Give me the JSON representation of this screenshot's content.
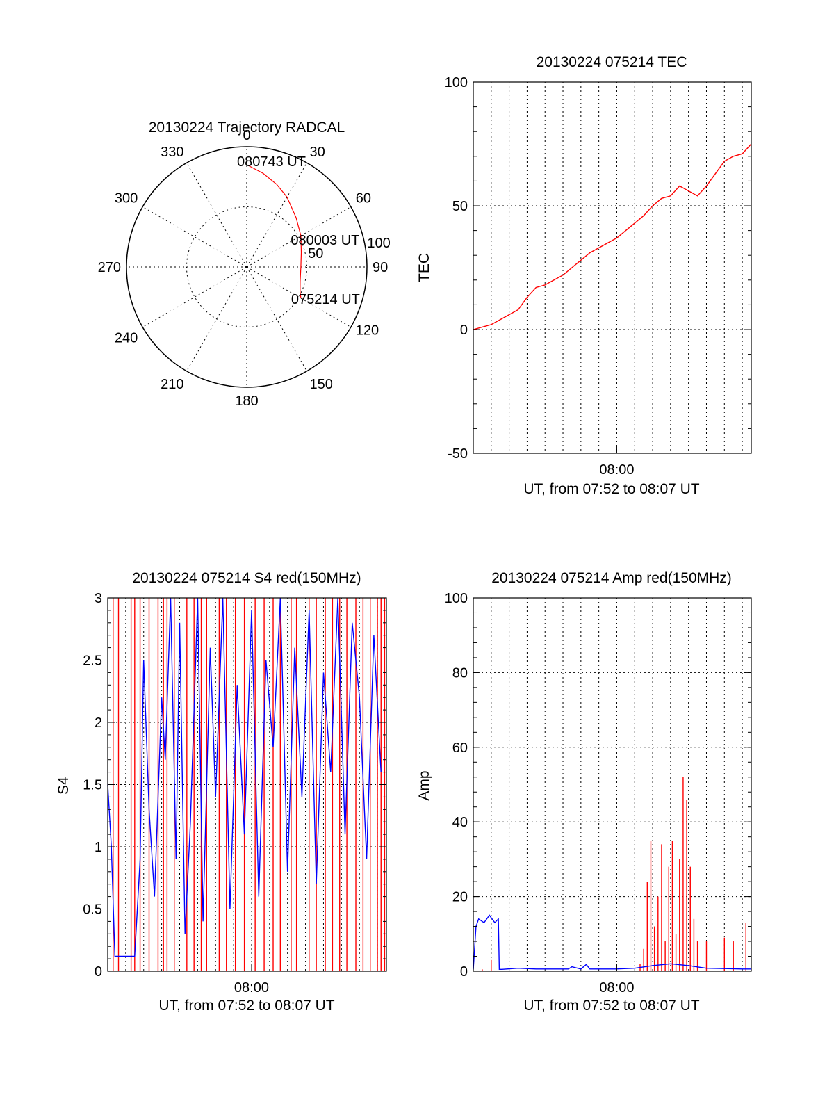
{
  "chart_data": [
    {
      "type": "polar",
      "title": "20130224 Trajectory RADCAL",
      "angle_labels": [
        "0",
        "30",
        "60",
        "90",
        "120",
        "150",
        "180",
        "210",
        "240",
        "270",
        "300",
        "330"
      ],
      "radius_labels": [
        "50",
        "100"
      ],
      "rlim": [
        0,
        100
      ],
      "grid": true,
      "trajectory": {
        "color": "#ff0000",
        "azimuth_deg": [
          0,
          10,
          20,
          30,
          45,
          60,
          75,
          90,
          105,
          115,
          120
        ],
        "radius": [
          85,
          79,
          73,
          67,
          58,
          52,
          47,
          45,
          46,
          49,
          52
        ]
      },
      "annotations": [
        {
          "text": "080743 UT",
          "azimuth_deg": 0,
          "radius": 85
        },
        {
          "text": "080003 UT",
          "azimuth_deg": 84,
          "radius": 45
        },
        {
          "text": "075214 UT",
          "azimuth_deg": 120,
          "radius": 52
        }
      ]
    },
    {
      "type": "line",
      "title": "20130224 075214 TEC",
      "xlabel": "UT, from 07:52 to 08:07 UT",
      "ylabel": "TEC",
      "xlim": [
        0,
        15.5
      ],
      "ylim": [
        -50,
        100
      ],
      "yticks": [
        -50,
        0,
        50,
        100
      ],
      "xticks": [
        {
          "value": 8,
          "label": "08:00"
        }
      ],
      "grid": true,
      "series": [
        {
          "color": "#ff0000",
          "x": [
            0,
            0.5,
            1,
            1.5,
            2,
            2.5,
            3,
            3.5,
            4,
            4.5,
            5,
            5.5,
            6,
            6.5,
            7,
            7.5,
            8,
            8.5,
            9,
            9.5,
            10,
            10.5,
            11,
            11.5,
            12,
            12.5,
            13,
            13.5,
            14,
            14.5,
            15,
            15.5
          ],
          "y": [
            0,
            1,
            2,
            4,
            6,
            8,
            13,
            17,
            18,
            20,
            22,
            25,
            28,
            31,
            33,
            35,
            37,
            40,
            43,
            46,
            50,
            53,
            54,
            58,
            56,
            54,
            58,
            63,
            68,
            70,
            71,
            75
          ]
        }
      ]
    },
    {
      "type": "line",
      "title": "20130224 075214 S4 red(150MHz)",
      "xlabel": "UT, from 07:52 to 08:07 UT",
      "ylabel": "S4",
      "xlim": [
        0,
        15.5
      ],
      "ylim": [
        0,
        3
      ],
      "yticks": [
        0,
        0.5,
        1,
        1.5,
        2,
        2.5,
        3
      ],
      "xticks": [
        {
          "value": 8,
          "label": "08:00"
        }
      ],
      "grid": true,
      "series": [
        {
          "color": "#ff0000",
          "x": [
            0.3,
            0.6,
            1.3,
            1.5,
            1.8,
            2.3,
            2.8,
            3.1,
            3.3,
            3.7,
            4.4,
            4.8,
            5.2,
            5.5,
            6.2,
            6.6,
            7.1,
            7.6,
            8.2,
            8.7,
            9.2,
            9.6,
            10.2,
            10.5,
            11.2,
            11.6,
            12.1,
            12.5,
            12.9,
            13.3,
            13.8,
            14.2,
            14.6,
            15.0,
            15.2,
            15.4
          ],
          "y": [
            3,
            3,
            3,
            3,
            3,
            3,
            3,
            3,
            3,
            3,
            3,
            3,
            3,
            3,
            3,
            3,
            3,
            3,
            3,
            3,
            3,
            3,
            3,
            3,
            3,
            3,
            3,
            3,
            3,
            3,
            3,
            3,
            3,
            3,
            3,
            3
          ]
        },
        {
          "color": "#0000ff",
          "x": [
            0,
            0.2,
            0.4,
            0.8,
            1.2,
            1.5,
            1.8,
            2.0,
            2.3,
            2.6,
            3.0,
            3.2,
            3.5,
            3.8,
            4.0,
            4.3,
            4.6,
            5.0,
            5.3,
            5.7,
            6.0,
            6.4,
            6.8,
            7.2,
            7.6,
            8.0,
            8.4,
            8.8,
            9.2,
            9.6,
            10.0,
            10.4,
            10.8,
            11.2,
            11.6,
            12.0,
            12.4,
            12.8,
            13.2,
            13.6,
            14.0,
            14.4,
            14.8,
            15.2
          ],
          "y": [
            1.5,
            1.0,
            0.12,
            0.12,
            0.12,
            0.12,
            0.9,
            2.5,
            1.3,
            0.6,
            2.2,
            1.7,
            3,
            0.9,
            2.8,
            0.3,
            1.2,
            3,
            0.4,
            2.6,
            1.4,
            3,
            0.5,
            2.3,
            1.1,
            2.9,
            0.6,
            2.5,
            1.8,
            3,
            0.8,
            2.6,
            1.4,
            2.9,
            0.7,
            2.4,
            1.6,
            3,
            1.1,
            2.8,
            2.2,
            0.9,
            2.7,
            1.6
          ]
        }
      ]
    },
    {
      "type": "line",
      "title": "20130224 075214 Amp red(150MHz)",
      "xlabel": "UT, from 07:52 to 08:07 UT",
      "ylabel": "Amp",
      "xlim": [
        0,
        15.5
      ],
      "ylim": [
        0,
        100
      ],
      "yticks": [
        0,
        20,
        40,
        60,
        80,
        100
      ],
      "xticks": [
        {
          "value": 8,
          "label": "08:00"
        }
      ],
      "grid": true,
      "series": [
        {
          "color": "#ff0000",
          "x": [
            0.5,
            1.0,
            9.3,
            9.5,
            9.7,
            9.9,
            10.1,
            10.3,
            10.5,
            10.7,
            10.9,
            11.1,
            11.3,
            11.5,
            11.7,
            11.9,
            12.1,
            12.3,
            12.5,
            13.0,
            14.0,
            14.5,
            15.2
          ],
          "y": [
            0.5,
            3,
            2,
            6,
            24,
            35,
            12,
            20,
            34,
            8,
            28,
            35,
            10,
            30,
            52,
            46,
            28,
            14,
            8,
            8,
            9,
            8,
            13
          ]
        },
        {
          "color": "#0000ff",
          "x": [
            0,
            0.15,
            0.3,
            0.6,
            0.9,
            1.2,
            1.4,
            1.45,
            1.6,
            2.5,
            3.5,
            4.5,
            5.3,
            5.5,
            6.0,
            6.3,
            6.5,
            7.0,
            8.0,
            9.0,
            10.0,
            11.0,
            12.0,
            13.0,
            14.0,
            15.0,
            15.5
          ],
          "y": [
            0.5,
            12,
            14,
            13,
            15,
            13,
            14,
            0.5,
            0.5,
            0.8,
            0.6,
            0.6,
            0.6,
            1.2,
            0.6,
            1.8,
            0.6,
            0.6,
            0.6,
            0.8,
            1.5,
            2,
            1.5,
            0.8,
            0.7,
            0.6,
            0.6
          ]
        }
      ]
    }
  ]
}
